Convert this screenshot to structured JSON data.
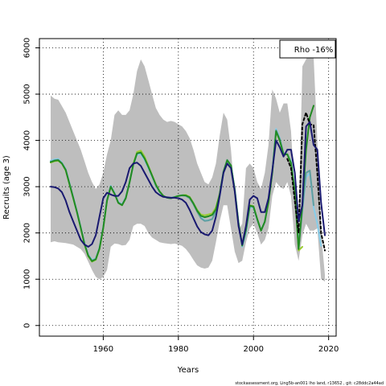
{
  "chart_data": {
    "type": "line",
    "xlabel": "Years",
    "ylabel": "Recruits (age 3)",
    "xlim": [
      1943,
      2022
    ],
    "ylim": [
      -230,
      6200
    ],
    "xticks": [
      1960,
      1980,
      2000,
      2020
    ],
    "yticks": [
      0,
      1000,
      2000,
      3000,
      4000,
      5000,
      6000
    ],
    "grid": true,
    "legend_position": "top-right",
    "legend_text": "Rho -16%",
    "colors": {
      "band": "#bebebe",
      "base": "#191970",
      "peel1": "#000000",
      "peel2": "#228b22",
      "peel3": "#5f9ea0",
      "peel4": "#87ceeb",
      "peel5": "#9acd32"
    },
    "band": {
      "x": [
        1946,
        1947,
        1948,
        1950,
        1952,
        1954,
        1955,
        1956,
        1957,
        1958,
        1959,
        1960,
        1961,
        1962,
        1963,
        1964,
        1965,
        1966,
        1967,
        1968,
        1969,
        1970,
        1971,
        1972,
        1973,
        1974,
        1975,
        1976,
        1977,
        1978,
        1979,
        1980,
        1981,
        1982,
        1983,
        1984,
        1985,
        1986,
        1987,
        1988,
        1989,
        1990,
        1991,
        1992,
        1993,
        1994,
        1995,
        1996,
        1997,
        1998,
        1999,
        2000,
        2001,
        2002,
        2003,
        2004,
        2005,
        2006,
        2007,
        2008,
        2009,
        2010,
        2011,
        2012,
        2013,
        2014,
        2015,
        2016,
        2017,
        2018,
        2019
      ],
      "upper": [
        4970,
        4900,
        4880,
        4600,
        4200,
        3800,
        3550,
        3300,
        3100,
        2950,
        3050,
        3300,
        3700,
        4000,
        4550,
        4650,
        4550,
        4550,
        4650,
        5000,
        5500,
        5750,
        5600,
        5300,
        5000,
        4700,
        4550,
        4450,
        4400,
        4420,
        4400,
        4350,
        4300,
        4200,
        4050,
        3800,
        3500,
        3300,
        3100,
        3050,
        3200,
        3500,
        4100,
        4600,
        4450,
        3800,
        2800,
        2050,
        2200,
        3400,
        3500,
        3400,
        3100,
        2950,
        3300,
        3900,
        5100,
        4900,
        4600,
        4800,
        4800,
        4200,
        2800,
        2200,
        5600,
        5750,
        5900,
        5800,
        4000,
        2000,
        1100
      ],
      "lower": [
        1800,
        1820,
        1800,
        1780,
        1750,
        1650,
        1550,
        1380,
        1200,
        1050,
        1000,
        1050,
        1200,
        1700,
        1770,
        1760,
        1730,
        1740,
        1850,
        2150,
        2200,
        2200,
        2150,
        2000,
        1900,
        1850,
        1800,
        1780,
        1770,
        1760,
        1770,
        1750,
        1720,
        1650,
        1550,
        1420,
        1300,
        1250,
        1230,
        1250,
        1400,
        1800,
        2250,
        2600,
        2600,
        2100,
        1600,
        1350,
        1400,
        1800,
        2100,
        2200,
        2000,
        1750,
        1850,
        2100,
        2800,
        3100,
        3000,
        2950,
        3100,
        2800,
        1750,
        1400,
        1950,
        2200,
        2050,
        2050,
        2100,
        1000,
        950
      ]
    },
    "series": [
      {
        "name": "",
        "key": "peel5",
        "x": [
          1946,
          1947,
          1948,
          1949,
          1950,
          1951,
          1952,
          1953,
          1954,
          1955,
          1956,
          1957,
          1958,
          1959,
          1960,
          1961,
          1962,
          1963,
          1964,
          1965,
          1966,
          1967,
          1968,
          1969,
          1970,
          1971,
          1972,
          1973,
          1974,
          1975,
          1976,
          1977,
          1978,
          1979,
          1980,
          1981,
          1982,
          1983,
          1984,
          1985,
          1986,
          1987,
          1988,
          1989,
          1990,
          1991,
          1992,
          1993,
          1994,
          1995,
          1996,
          1997,
          1998,
          1999,
          2000,
          2001,
          2002,
          2003,
          2004,
          2005,
          2006,
          2007,
          2008,
          2009,
          2010,
          2011,
          2012,
          2013
        ],
        "y": [
          3520,
          3550,
          3560,
          3500,
          3350,
          3050,
          2750,
          2450,
          2100,
          1750,
          1500,
          1380,
          1420,
          1650,
          2100,
          2700,
          3000,
          2850,
          2650,
          2600,
          2750,
          3100,
          3500,
          3750,
          3780,
          3650,
          3450,
          3250,
          3050,
          2900,
          2800,
          2760,
          2750,
          2780,
          2800,
          2820,
          2820,
          2780,
          2650,
          2500,
          2400,
          2380,
          2400,
          2420,
          2550,
          2850,
          3300,
          3550,
          3450,
          2900,
          2200,
          1750,
          2100,
          2600,
          2580,
          2300,
          2050,
          2250,
          2650,
          3300,
          4200,
          4000,
          3700,
          3700,
          3500,
          2900,
          1620,
          1700
        ]
      },
      {
        "name": "",
        "key": "peel4",
        "x": [
          1946,
          1947,
          1948,
          1949,
          1950,
          1951,
          1952,
          1953,
          1954,
          1955,
          1956,
          1957,
          1958,
          1959,
          1960,
          1961,
          1962,
          1963,
          1964,
          1965,
          1966,
          1967,
          1968,
          1969,
          1970,
          1971,
          1972,
          1973,
          1974,
          1975,
          1976,
          1977,
          1978,
          1979,
          1980,
          1981,
          1982,
          1983,
          1984,
          1985,
          1986,
          1987,
          1988,
          1989,
          1990,
          1991,
          1992,
          1993,
          1994,
          1995,
          1996,
          1997,
          1998,
          1999,
          2000,
          2001,
          2002,
          2003,
          2004,
          2005,
          2006,
          2007,
          2008,
          2009,
          2010,
          2011,
          2012,
          2013,
          2014,
          2015,
          2016,
          2017,
          2018
        ],
        "y": [
          3560,
          3590,
          3600,
          3520,
          3380,
          3080,
          2780,
          2470,
          2130,
          1780,
          1530,
          1420,
          1450,
          1680,
          2130,
          2720,
          3020,
          2870,
          2670,
          2620,
          2770,
          3100,
          3470,
          3700,
          3700,
          3580,
          3400,
          3220,
          3020,
          2880,
          2790,
          2760,
          2760,
          2780,
          2800,
          2820,
          2800,
          2760,
          2640,
          2480,
          2340,
          2270,
          2270,
          2300,
          2450,
          2800,
          3300,
          3560,
          3450,
          2950,
          2230,
          1700,
          2000,
          2550,
          2550,
          2280,
          2060,
          2250,
          2700,
          3330,
          4250,
          4050,
          3720,
          3700,
          3550,
          2920,
          1700,
          2500,
          3200,
          3300,
          2550,
          2200,
          1720
        ]
      },
      {
        "name": "",
        "key": "peel3",
        "x": [
          1946,
          1947,
          1948,
          1949,
          1950,
          1951,
          1952,
          1953,
          1954,
          1955,
          1956,
          1957,
          1958,
          1959,
          1960,
          1961,
          1962,
          1963,
          1964,
          1965,
          1966,
          1967,
          1968,
          1969,
          1970,
          1971,
          1972,
          1973,
          1974,
          1975,
          1976,
          1977,
          1978,
          1979,
          1980,
          1981,
          1982,
          1983,
          1984,
          1985,
          1986,
          1987,
          1988,
          1989,
          1990,
          1991,
          1992,
          1993,
          1994,
          1995,
          1996,
          1997,
          1998,
          1999,
          2000,
          2001,
          2002,
          2003,
          2004,
          2005,
          2006,
          2007,
          2008,
          2009,
          2010,
          2011,
          2012,
          2013,
          2014,
          2015,
          2016
        ],
        "y": [
          3540,
          3570,
          3580,
          3510,
          3370,
          3070,
          2770,
          2460,
          2120,
          1770,
          1520,
          1400,
          1440,
          1670,
          2120,
          2710,
          3010,
          2860,
          2660,
          2610,
          2760,
          3100,
          3480,
          3720,
          3730,
          3600,
          3420,
          3230,
          3030,
          2890,
          2800,
          2760,
          2750,
          2770,
          2800,
          2810,
          2800,
          2750,
          2620,
          2460,
          2320,
          2260,
          2270,
          2300,
          2470,
          2830,
          3330,
          3580,
          3460,
          2950,
          2220,
          1720,
          2050,
          2580,
          2560,
          2290,
          2050,
          2240,
          2680,
          3310,
          4220,
          4030,
          3710,
          3700,
          3520,
          2900,
          1670,
          2500,
          3300,
          3350,
          2600
        ]
      },
      {
        "name": "",
        "key": "peel2",
        "x": [
          1946,
          1947,
          1948,
          1949,
          1950,
          1951,
          1952,
          1953,
          1954,
          1955,
          1956,
          1957,
          1958,
          1959,
          1960,
          1961,
          1962,
          1963,
          1964,
          1965,
          1966,
          1967,
          1968,
          1969,
          1970,
          1971,
          1972,
          1973,
          1974,
          1975,
          1976,
          1977,
          1978,
          1979,
          1980,
          1981,
          1982,
          1983,
          1984,
          1985,
          1986,
          1987,
          1988,
          1989,
          1990,
          1991,
          1992,
          1993,
          1994,
          1995,
          1996,
          1997,
          1998,
          1999,
          2000,
          2001,
          2002,
          2003,
          2004,
          2005,
          2006,
          2007,
          2008,
          2009,
          2010,
          2011,
          2012,
          2013,
          2014,
          2015,
          2016
        ],
        "y": [
          3530,
          3560,
          3570,
          3500,
          3360,
          3060,
          2760,
          2450,
          2110,
          1760,
          1510,
          1390,
          1430,
          1660,
          2110,
          2700,
          3000,
          2850,
          2650,
          2600,
          2750,
          3090,
          3480,
          3720,
          3740,
          3610,
          3430,
          3240,
          3040,
          2895,
          2800,
          2760,
          2750,
          2775,
          2800,
          2815,
          2810,
          2770,
          2640,
          2480,
          2370,
          2340,
          2360,
          2390,
          2510,
          2840,
          3320,
          3570,
          3460,
          2930,
          2210,
          1730,
          2070,
          2590,
          2570,
          2300,
          2050,
          2245,
          2670,
          3300,
          4200,
          4000,
          3700,
          3700,
          3510,
          2900,
          1650,
          2600,
          3800,
          4500,
          4750
        ]
      },
      {
        "name": "",
        "key": "peel1",
        "x": [
          2009,
          2010,
          2011,
          2012,
          2013,
          2014,
          2015,
          2016,
          2017,
          2018,
          2019
        ],
        "y": [
          3600,
          3400,
          2700,
          2000,
          4350,
          4600,
          4350,
          4330,
          3300,
          2000,
          1620
        ],
        "dashed": true
      },
      {
        "name": "",
        "key": "base",
        "x": [
          1946,
          1947,
          1948,
          1949,
          1950,
          1951,
          1952,
          1953,
          1954,
          1955,
          1956,
          1957,
          1958,
          1959,
          1960,
          1961,
          1962,
          1963,
          1964,
          1965,
          1966,
          1967,
          1968,
          1969,
          1970,
          1971,
          1972,
          1973,
          1974,
          1975,
          1976,
          1977,
          1978,
          1979,
          1980,
          1981,
          1982,
          1983,
          1984,
          1985,
          1986,
          1987,
          1988,
          1989,
          1990,
          1991,
          1992,
          1993,
          1994,
          1995,
          1996,
          1997,
          1998,
          1999,
          2000,
          2001,
          2002,
          2003,
          2004,
          2005,
          2006,
          2007,
          2008,
          2009,
          2010,
          2011,
          2012,
          2013,
          2014,
          2015,
          2016,
          2017,
          2018,
          2019
        ],
        "y": [
          3000,
          2990,
          2960,
          2880,
          2700,
          2450,
          2250,
          2050,
          1850,
          1750,
          1700,
          1760,
          1950,
          2350,
          2750,
          2870,
          2830,
          2800,
          2800,
          2900,
          3100,
          3400,
          3500,
          3520,
          3450,
          3300,
          3150,
          3000,
          2880,
          2820,
          2780,
          2770,
          2760,
          2760,
          2750,
          2720,
          2650,
          2500,
          2320,
          2140,
          2020,
          1970,
          1950,
          2050,
          2350,
          2800,
          3300,
          3500,
          3400,
          2900,
          2150,
          1750,
          2150,
          2720,
          2800,
          2750,
          2450,
          2450,
          2750,
          3350,
          4000,
          3850,
          3650,
          3800,
          3800,
          3300,
          2250,
          2600,
          4300,
          4400,
          3900,
          3800,
          2650,
          1950
        ]
      }
    ]
  },
  "footer_text": "stockassessment.org, Ling5b-an001 lho land, r13652 , git: c28ddc2a44ad"
}
